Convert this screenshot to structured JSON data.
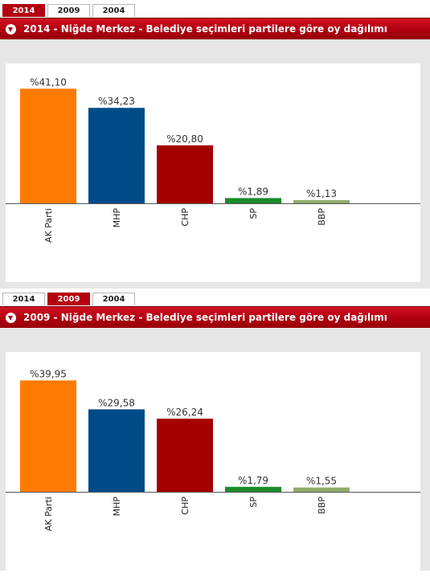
{
  "panels": [
    {
      "tabs": [
        {
          "label": "2014",
          "active": true
        },
        {
          "label": "2009",
          "active": false
        },
        {
          "label": "2004",
          "active": false
        }
      ],
      "title": "2014 - Niğde Merkez - Belediye seçimleri partilere göre oy dağılımı",
      "chart_data": {
        "type": "bar",
        "title": "2014 - Niğde Merkez - Belediye seçimleri partilere göre oy dağılımı",
        "categories": [
          "AK Parti",
          "MHP",
          "CHP",
          "SP",
          "BBP"
        ],
        "values": [
          41.1,
          34.23,
          20.8,
          1.89,
          1.13
        ],
        "value_labels": [
          "%41,10",
          "%34,23",
          "%20,80",
          "%1,89",
          "%1,13"
        ],
        "colors": [
          "#ff7a00",
          "#004b87",
          "#a50000",
          "#1b8a2b",
          "#8eac6a"
        ],
        "ylim": [
          0,
          50
        ],
        "grid": false,
        "xlabel": "",
        "ylabel": ""
      }
    },
    {
      "tabs": [
        {
          "label": "2014",
          "active": false
        },
        {
          "label": "2009",
          "active": true
        },
        {
          "label": "2004",
          "active": false
        }
      ],
      "title": "2009 - Niğde Merkez - Belediye seçimleri partilere göre oy dağılımı",
      "chart_data": {
        "type": "bar",
        "title": "2009 - Niğde Merkez - Belediye seçimleri partilere göre oy dağılımı",
        "categories": [
          "AK Parti",
          "MHP",
          "CHP",
          "SP",
          "BBP"
        ],
        "values": [
          39.95,
          29.58,
          26.24,
          1.79,
          1.55
        ],
        "value_labels": [
          "%39,95",
          "%29,58",
          "%26,24",
          "%1,79",
          "%1,55"
        ],
        "colors": [
          "#ff7a00",
          "#004b87",
          "#a50000",
          "#1b8a2b",
          "#8eac6a"
        ],
        "ylim": [
          0,
          50
        ],
        "grid": false,
        "xlabel": "",
        "ylabel": ""
      }
    }
  ]
}
